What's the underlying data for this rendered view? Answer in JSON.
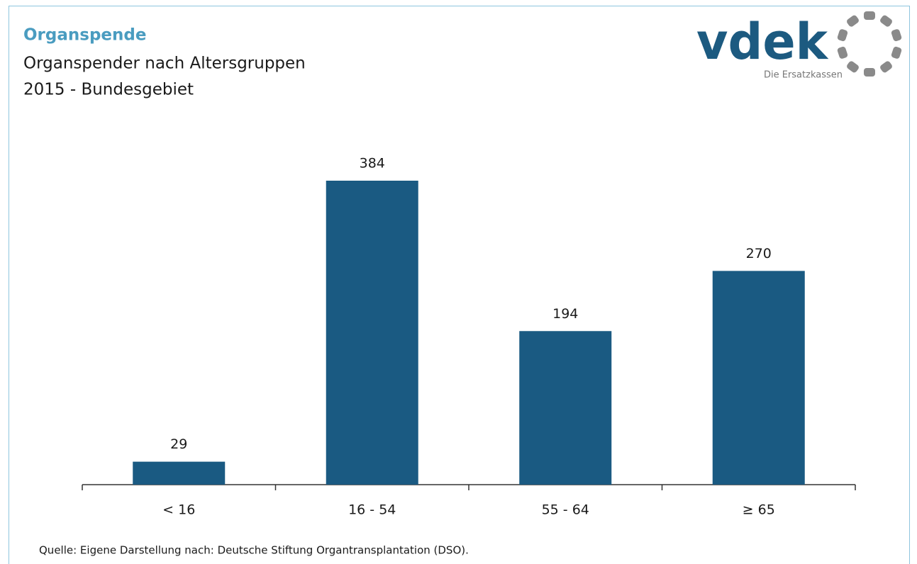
{
  "chart_data": {
    "type": "bar",
    "header": "Organspende",
    "title": "Organspender nach Altersgruppen",
    "subtitle": "2015 - Bundesgebiet",
    "logo": {
      "name": "vdek",
      "tagline": "Die Ersatzkassen"
    },
    "categories": [
      "< 16",
      "16 - 54",
      "55 - 64",
      "≥ 65"
    ],
    "values": [
      29,
      384,
      194,
      270
    ],
    "color": "#1a5a82",
    "source": "Quelle: Eigene Darstellung nach: Deutsche Stiftung Organtransplantation (DSO)."
  }
}
